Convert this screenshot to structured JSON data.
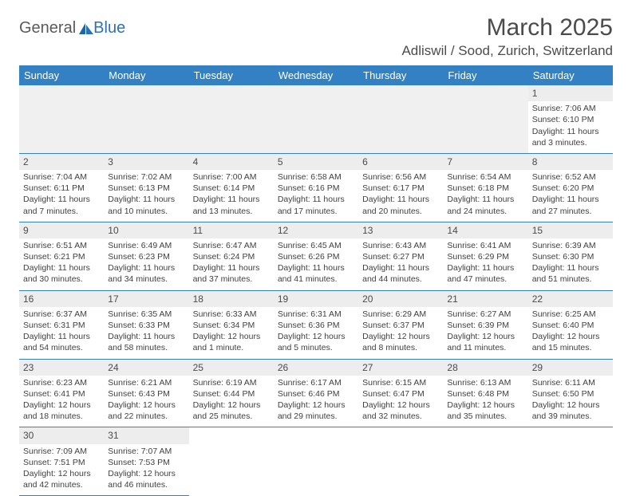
{
  "logo": {
    "general": "General",
    "blue": "Blue"
  },
  "title": "March 2025",
  "location": "Adliswil / Sood, Zurich, Switzerland",
  "colors": {
    "header_bg": "#3380c2",
    "header_fg": "#ffffff",
    "daynum_bg": "#ededed",
    "text": "#404040",
    "row_border": "#3380c2"
  },
  "dayNames": [
    "Sunday",
    "Monday",
    "Tuesday",
    "Wednesday",
    "Thursday",
    "Friday",
    "Saturday"
  ],
  "weeks": [
    [
      null,
      null,
      null,
      null,
      null,
      null,
      {
        "n": "1",
        "sr": "Sunrise: 7:06 AM",
        "ss": "Sunset: 6:10 PM",
        "dl": "Daylight: 11 hours and 3 minutes."
      }
    ],
    [
      {
        "n": "2",
        "sr": "Sunrise: 7:04 AM",
        "ss": "Sunset: 6:11 PM",
        "dl": "Daylight: 11 hours and 7 minutes."
      },
      {
        "n": "3",
        "sr": "Sunrise: 7:02 AM",
        "ss": "Sunset: 6:13 PM",
        "dl": "Daylight: 11 hours and 10 minutes."
      },
      {
        "n": "4",
        "sr": "Sunrise: 7:00 AM",
        "ss": "Sunset: 6:14 PM",
        "dl": "Daylight: 11 hours and 13 minutes."
      },
      {
        "n": "5",
        "sr": "Sunrise: 6:58 AM",
        "ss": "Sunset: 6:16 PM",
        "dl": "Daylight: 11 hours and 17 minutes."
      },
      {
        "n": "6",
        "sr": "Sunrise: 6:56 AM",
        "ss": "Sunset: 6:17 PM",
        "dl": "Daylight: 11 hours and 20 minutes."
      },
      {
        "n": "7",
        "sr": "Sunrise: 6:54 AM",
        "ss": "Sunset: 6:18 PM",
        "dl": "Daylight: 11 hours and 24 minutes."
      },
      {
        "n": "8",
        "sr": "Sunrise: 6:52 AM",
        "ss": "Sunset: 6:20 PM",
        "dl": "Daylight: 11 hours and 27 minutes."
      }
    ],
    [
      {
        "n": "9",
        "sr": "Sunrise: 6:51 AM",
        "ss": "Sunset: 6:21 PM",
        "dl": "Daylight: 11 hours and 30 minutes."
      },
      {
        "n": "10",
        "sr": "Sunrise: 6:49 AM",
        "ss": "Sunset: 6:23 PM",
        "dl": "Daylight: 11 hours and 34 minutes."
      },
      {
        "n": "11",
        "sr": "Sunrise: 6:47 AM",
        "ss": "Sunset: 6:24 PM",
        "dl": "Daylight: 11 hours and 37 minutes."
      },
      {
        "n": "12",
        "sr": "Sunrise: 6:45 AM",
        "ss": "Sunset: 6:26 PM",
        "dl": "Daylight: 11 hours and 41 minutes."
      },
      {
        "n": "13",
        "sr": "Sunrise: 6:43 AM",
        "ss": "Sunset: 6:27 PM",
        "dl": "Daylight: 11 hours and 44 minutes."
      },
      {
        "n": "14",
        "sr": "Sunrise: 6:41 AM",
        "ss": "Sunset: 6:29 PM",
        "dl": "Daylight: 11 hours and 47 minutes."
      },
      {
        "n": "15",
        "sr": "Sunrise: 6:39 AM",
        "ss": "Sunset: 6:30 PM",
        "dl": "Daylight: 11 hours and 51 minutes."
      }
    ],
    [
      {
        "n": "16",
        "sr": "Sunrise: 6:37 AM",
        "ss": "Sunset: 6:31 PM",
        "dl": "Daylight: 11 hours and 54 minutes."
      },
      {
        "n": "17",
        "sr": "Sunrise: 6:35 AM",
        "ss": "Sunset: 6:33 PM",
        "dl": "Daylight: 11 hours and 58 minutes."
      },
      {
        "n": "18",
        "sr": "Sunrise: 6:33 AM",
        "ss": "Sunset: 6:34 PM",
        "dl": "Daylight: 12 hours and 1 minute."
      },
      {
        "n": "19",
        "sr": "Sunrise: 6:31 AM",
        "ss": "Sunset: 6:36 PM",
        "dl": "Daylight: 12 hours and 5 minutes."
      },
      {
        "n": "20",
        "sr": "Sunrise: 6:29 AM",
        "ss": "Sunset: 6:37 PM",
        "dl": "Daylight: 12 hours and 8 minutes."
      },
      {
        "n": "21",
        "sr": "Sunrise: 6:27 AM",
        "ss": "Sunset: 6:39 PM",
        "dl": "Daylight: 12 hours and 11 minutes."
      },
      {
        "n": "22",
        "sr": "Sunrise: 6:25 AM",
        "ss": "Sunset: 6:40 PM",
        "dl": "Daylight: 12 hours and 15 minutes."
      }
    ],
    [
      {
        "n": "23",
        "sr": "Sunrise: 6:23 AM",
        "ss": "Sunset: 6:41 PM",
        "dl": "Daylight: 12 hours and 18 minutes."
      },
      {
        "n": "24",
        "sr": "Sunrise: 6:21 AM",
        "ss": "Sunset: 6:43 PM",
        "dl": "Daylight: 12 hours and 22 minutes."
      },
      {
        "n": "25",
        "sr": "Sunrise: 6:19 AM",
        "ss": "Sunset: 6:44 PM",
        "dl": "Daylight: 12 hours and 25 minutes."
      },
      {
        "n": "26",
        "sr": "Sunrise: 6:17 AM",
        "ss": "Sunset: 6:46 PM",
        "dl": "Daylight: 12 hours and 29 minutes."
      },
      {
        "n": "27",
        "sr": "Sunrise: 6:15 AM",
        "ss": "Sunset: 6:47 PM",
        "dl": "Daylight: 12 hours and 32 minutes."
      },
      {
        "n": "28",
        "sr": "Sunrise: 6:13 AM",
        "ss": "Sunset: 6:48 PM",
        "dl": "Daylight: 12 hours and 35 minutes."
      },
      {
        "n": "29",
        "sr": "Sunrise: 6:11 AM",
        "ss": "Sunset: 6:50 PM",
        "dl": "Daylight: 12 hours and 39 minutes."
      }
    ],
    [
      {
        "n": "30",
        "sr": "Sunrise: 7:09 AM",
        "ss": "Sunset: 7:51 PM",
        "dl": "Daylight: 12 hours and 42 minutes."
      },
      {
        "n": "31",
        "sr": "Sunrise: 7:07 AM",
        "ss": "Sunset: 7:53 PM",
        "dl": "Daylight: 12 hours and 46 minutes."
      },
      null,
      null,
      null,
      null,
      null
    ]
  ]
}
